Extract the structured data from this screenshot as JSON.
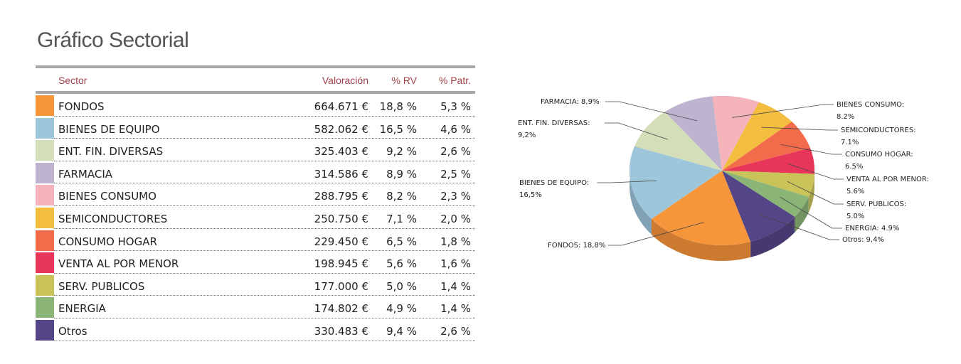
{
  "title": "Gráfico Sectorial",
  "table": {
    "headers": {
      "sector": "Sector",
      "valoracion": "Valoración",
      "rv": "% RV",
      "patr": "% Patr."
    },
    "rows": [
      {
        "sector": "FONDOS",
        "valoracion": "664.671 €",
        "rv": "18,8 %",
        "patr": "5,3 %",
        "color": "#F7953A"
      },
      {
        "sector": "BIENES DE EQUIPO",
        "valoracion": "582.062 €",
        "rv": "16,5 %",
        "patr": "4,6 %",
        "color": "#9DC6DB"
      },
      {
        "sector": "ENT. FIN. DIVERSAS",
        "valoracion": "325.403 €",
        "rv": "9,2 %",
        "patr": "2,6 %",
        "color": "#D4DEB8"
      },
      {
        "sector": "FARMACIA",
        "valoracion": "314.586 €",
        "rv": "8,9 %",
        "patr": "2,5 %",
        "color": "#BEB4CF"
      },
      {
        "sector": "BIENES CONSUMO",
        "valoracion": "288.795 €",
        "rv": "8,2 %",
        "patr": "2,3 %",
        "color": "#F5B4BC"
      },
      {
        "sector": "SEMICONDUCTORES",
        "valoracion": "250.750 €",
        "rv": "7,1 %",
        "patr": "2,0 %",
        "color": "#F3BE40"
      },
      {
        "sector": "CONSUMO HOGAR",
        "valoracion": "229.450 €",
        "rv": "6,5 %",
        "patr": "1,8 %",
        "color": "#F26B4A"
      },
      {
        "sector": "VENTA AL POR MENOR",
        "valoracion": "198.945 €",
        "rv": "5,6 %",
        "patr": "1,6 %",
        "color": "#E8365B"
      },
      {
        "sector": "SERV. PUBLICOS",
        "valoracion": "177.000 €",
        "rv": "5,0 %",
        "patr": "1,4 %",
        "color": "#C9C35A"
      },
      {
        "sector": "ENERGIA",
        "valoracion": "174.802 €",
        "rv": "4,9 %",
        "patr": "1,4 %",
        "color": "#8BB577"
      },
      {
        "sector": "Otros",
        "valoracion": "330.483 €",
        "rv": "9,4 %",
        "patr": "2,6 %",
        "color": "#544587"
      }
    ]
  },
  "chart_data": {
    "type": "pie",
    "slices": [
      {
        "label": "FONDOS",
        "value": 18.8,
        "color": "#F7953A",
        "text": "FONDOS: 18,8%"
      },
      {
        "label": "BIENES DE EQUIPO",
        "value": 16.5,
        "color": "#9DC6DB",
        "text": "BIENES DE EQUIPO: 16,5%"
      },
      {
        "label": "ENT. FIN. DIVERSAS",
        "value": 9.2,
        "color": "#D4DEB8",
        "text": "ENT. FIN. DIVERSAS: 9,2%"
      },
      {
        "label": "FARMACIA",
        "value": 8.9,
        "color": "#BEB4CF",
        "text": "FARMACIA: 8,9%"
      },
      {
        "label": "BIENES CONSUMO",
        "value": 8.2,
        "color": "#F5B4BC",
        "text": "BIENES CONSUMO: 8.2%"
      },
      {
        "label": "SEMICONDUCTORES",
        "value": 7.1,
        "color": "#F3BE40",
        "text": "SEMICONDUCTORES: 7.1%"
      },
      {
        "label": "CONSUMO HOGAR",
        "value": 6.5,
        "color": "#F26B4A",
        "text": "CONSUMO HOGAR: 6.5%"
      },
      {
        "label": "VENTA AL POR MENOR",
        "value": 5.6,
        "color": "#E8365B",
        "text": "VENTA AL POR MENOR: 5.6%"
      },
      {
        "label": "SERV. PUBLICOS",
        "value": 5.0,
        "color": "#C9C35A",
        "text": "SERV. PUBLICOS: 5.0%"
      },
      {
        "label": "ENERGIA",
        "value": 4.9,
        "color": "#8BB577",
        "text": "ENERGIA: 4.9%"
      },
      {
        "label": "Otros",
        "value": 9.4,
        "color": "#544587",
        "text": "Otros: 9,4%"
      }
    ]
  }
}
